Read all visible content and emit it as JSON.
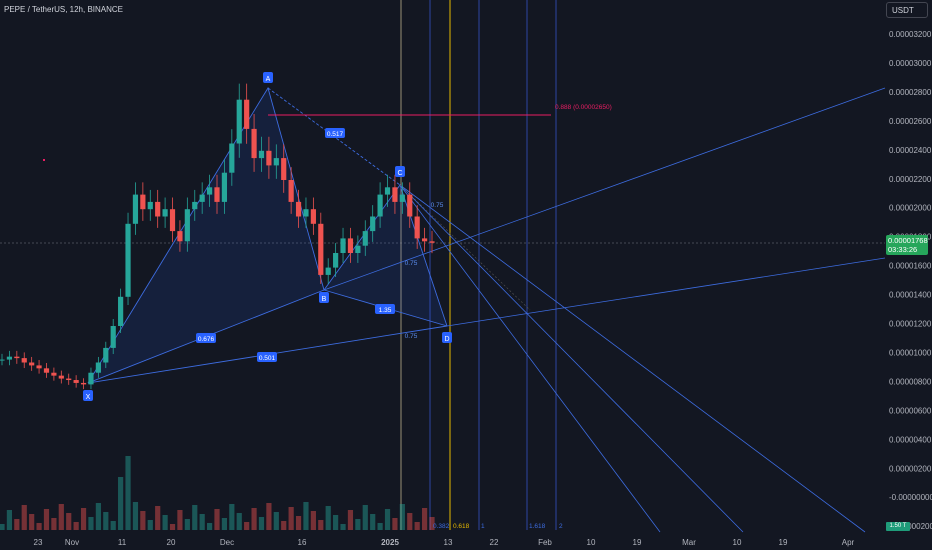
{
  "symbol_title": "PEPE / TetherUS, 12h, BINANCE",
  "currency_button": "USDT",
  "price_axis": [
    "0.00003200",
    "0.00003000",
    "0.00002800",
    "0.00002600",
    "0.00002400",
    "0.00002200",
    "0.00002000",
    "0.00001800",
    "0.00001600",
    "0.00001400",
    "0.00001200",
    "0.00001000",
    "0.00000800",
    "0.00000600",
    "0.00000400",
    "0.00000200",
    "-0.00000000",
    "-0.00000200"
  ],
  "last_price": {
    "value": "0.00001768",
    "countdown": "03:33:26"
  },
  "volume_tag": "1.50 T",
  "time_axis": [
    "23",
    "Nov",
    "11",
    "20",
    "Dec",
    "16",
    "2025",
    "13",
    "22",
    "Feb",
    "10",
    "19",
    "Mar",
    "10",
    "19",
    "Apr"
  ],
  "pattern_points": [
    "X",
    "A",
    "B",
    "C",
    "D"
  ],
  "ratio_labels": [
    "0.517",
    "0.676",
    "0.501",
    "1.35",
    "0.75",
    "0.75",
    "0.75"
  ],
  "fib_line_label": "0.888 (0.00002650)",
  "time_fib_labels": [
    "0.382",
    "0.618",
    "1",
    "1.618",
    "2"
  ],
  "colors": {
    "background": "#131722",
    "candle_up": "#26a69a",
    "candle_down": "#ef5350",
    "pattern_fill": "#2962ff",
    "fib_line": "#e91e63",
    "accent_orange": "#ffb74d",
    "last_price": "#26a65b"
  },
  "chart_data": {
    "type": "candlestick",
    "timeframe": "12h",
    "x_ticks": [
      "23",
      "Nov",
      "11",
      "20",
      "Dec",
      "16",
      "2025",
      "13",
      "22",
      "Feb",
      "10",
      "19",
      "Mar",
      "10",
      "19",
      "Apr"
    ],
    "y_range": [
      -2e-06,
      3.3e-05
    ],
    "close_series": [
      9.7e-06,
      9.9e-06,
      9.8e-06,
      9.5e-06,
      9.3e-06,
      9.1e-06,
      8.8e-06,
      8.6e-06,
      8.4e-06,
      8.3e-06,
      8.1e-06,
      8e-06,
      8.8e-06,
      9.5e-06,
      1.05e-05,
      1.2e-05,
      1.4e-05,
      1.9e-05,
      2.1e-05,
      2e-05,
      2.05e-05,
      1.95e-05,
      2e-05,
      1.85e-05,
      1.78e-05,
      2e-05,
      2.05e-05,
      2.1e-05,
      2.15e-05,
      2.05e-05,
      2.25e-05,
      2.45e-05,
      2.75e-05,
      2.55e-05,
      2.35e-05,
      2.4e-05,
      2.3e-05,
      2.35e-05,
      2.2e-05,
      2.05e-05,
      1.95e-05,
      2e-05,
      1.9e-05,
      1.55e-05,
      1.6e-05,
      1.7e-05,
      1.8e-05,
      1.7e-05,
      1.75e-05,
      1.85e-05,
      1.95e-05,
      2.1e-05,
      2.15e-05,
      2.05e-05,
      2.1e-05,
      1.95e-05,
      1.8e-05,
      1.78e-05,
      1.77e-05
    ],
    "last_close": 1.768e-05,
    "harmonic_points": {
      "X": 7.8e-06,
      "A": 2.8e-05,
      "B": 1.45e-05,
      "C": 2.18e-05,
      "D": 1.18e-05
    },
    "fib_level": {
      "ratio": 0.888,
      "price": 2.65e-05
    }
  }
}
